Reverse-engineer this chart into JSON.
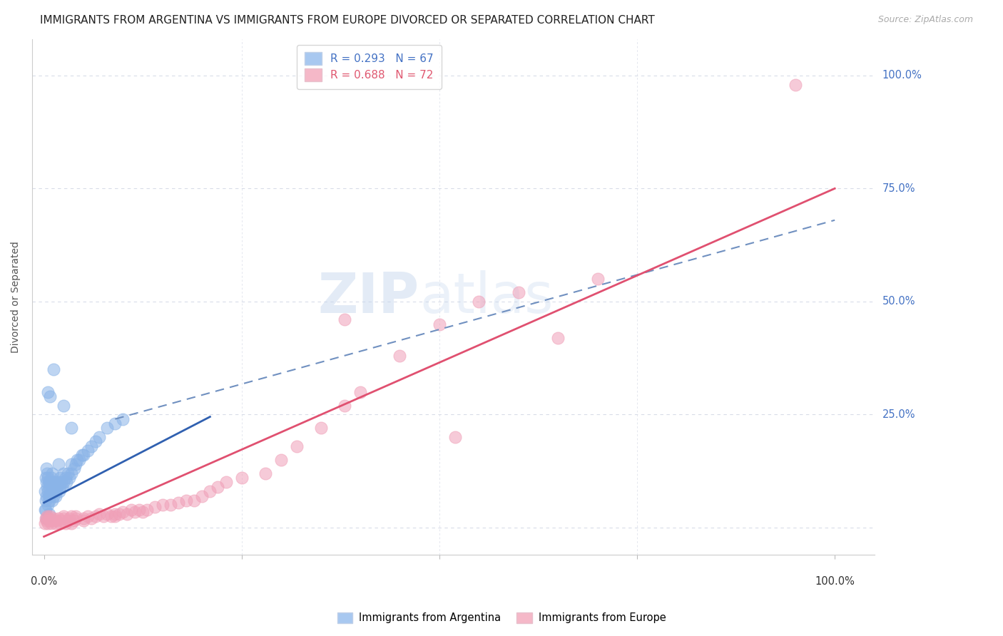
{
  "title": "IMMIGRANTS FROM ARGENTINA VS IMMIGRANTS FROM EUROPE DIVORCED OR SEPARATED CORRELATION CHART",
  "source": "Source: ZipAtlas.com",
  "ylabel": "Divorced or Separated",
  "series1": {
    "name": "Immigrants from Argentina",
    "scatter_color": "#8ab4e8",
    "line_color": "#3060b0",
    "R": 0.293,
    "N": 67,
    "line_x0": 0.0,
    "line_y0": 0.055,
    "line_x1": 0.21,
    "line_y1": 0.245
  },
  "series2": {
    "name": "Immigrants from Europe",
    "scatter_color": "#f0a0b8",
    "line_color": "#e05070",
    "R": 0.688,
    "N": 72,
    "line_x0": 0.0,
    "line_y0": -0.02,
    "line_x1": 1.0,
    "line_y1": 0.75
  },
  "dashed_line": {
    "color": "#7090c0",
    "x0": 0.09,
    "y0": 0.24,
    "x1": 1.0,
    "y1": 0.68
  },
  "scatter1_data": {
    "x": [
      0.001,
      0.001,
      0.002,
      0.002,
      0.003,
      0.003,
      0.003,
      0.004,
      0.004,
      0.005,
      0.005,
      0.005,
      0.006,
      0.006,
      0.007,
      0.007,
      0.008,
      0.008,
      0.009,
      0.009,
      0.01,
      0.01,
      0.01,
      0.012,
      0.012,
      0.013,
      0.014,
      0.015,
      0.015,
      0.016,
      0.017,
      0.018,
      0.019,
      0.02,
      0.02,
      0.022,
      0.023,
      0.025,
      0.025,
      0.027,
      0.028,
      0.03,
      0.032,
      0.035,
      0.035,
      0.038,
      0.04,
      0.042,
      0.045,
      0.048,
      0.05,
      0.055,
      0.06,
      0.065,
      0.07,
      0.08,
      0.09,
      0.1,
      0.005,
      0.008,
      0.012,
      0.025,
      0.002,
      0.003,
      0.007,
      0.035,
      0.018
    ],
    "y": [
      0.04,
      0.08,
      0.06,
      0.11,
      0.07,
      0.1,
      0.13,
      0.09,
      0.12,
      0.05,
      0.08,
      0.11,
      0.07,
      0.1,
      0.06,
      0.09,
      0.07,
      0.1,
      0.08,
      0.11,
      0.06,
      0.09,
      0.12,
      0.07,
      0.1,
      0.08,
      0.09,
      0.07,
      0.1,
      0.08,
      0.09,
      0.1,
      0.08,
      0.09,
      0.11,
      0.1,
      0.09,
      0.1,
      0.12,
      0.11,
      0.1,
      0.12,
      0.11,
      0.12,
      0.14,
      0.13,
      0.14,
      0.15,
      0.15,
      0.16,
      0.16,
      0.17,
      0.18,
      0.19,
      0.2,
      0.22,
      0.23,
      0.24,
      0.3,
      0.29,
      0.35,
      0.27,
      0.04,
      0.02,
      0.03,
      0.22,
      0.14
    ]
  },
  "scatter2_data": {
    "x": [
      0.001,
      0.002,
      0.003,
      0.004,
      0.005,
      0.006,
      0.007,
      0.008,
      0.009,
      0.01,
      0.012,
      0.013,
      0.015,
      0.016,
      0.018,
      0.02,
      0.022,
      0.025,
      0.025,
      0.027,
      0.03,
      0.032,
      0.035,
      0.035,
      0.038,
      0.04,
      0.04,
      0.05,
      0.05,
      0.055,
      0.06,
      0.065,
      0.07,
      0.075,
      0.08,
      0.085,
      0.09,
      0.09,
      0.095,
      0.1,
      0.105,
      0.11,
      0.115,
      0.12,
      0.125,
      0.13,
      0.14,
      0.15,
      0.16,
      0.17,
      0.18,
      0.19,
      0.2,
      0.21,
      0.22,
      0.23,
      0.25,
      0.28,
      0.3,
      0.32,
      0.35,
      0.38,
      0.4,
      0.45,
      0.5,
      0.55,
      0.6,
      0.65,
      0.7,
      0.38,
      0.95,
      0.52
    ],
    "y": [
      0.01,
      0.02,
      0.015,
      0.025,
      0.01,
      0.02,
      0.015,
      0.025,
      0.01,
      0.015,
      0.02,
      0.015,
      0.01,
      0.015,
      0.02,
      0.01,
      0.015,
      0.02,
      0.025,
      0.01,
      0.015,
      0.02,
      0.025,
      0.01,
      0.015,
      0.02,
      0.025,
      0.015,
      0.02,
      0.025,
      0.02,
      0.025,
      0.03,
      0.025,
      0.03,
      0.025,
      0.03,
      0.025,
      0.03,
      0.035,
      0.03,
      0.04,
      0.035,
      0.04,
      0.035,
      0.04,
      0.045,
      0.05,
      0.05,
      0.055,
      0.06,
      0.06,
      0.07,
      0.08,
      0.09,
      0.1,
      0.11,
      0.12,
      0.15,
      0.18,
      0.22,
      0.27,
      0.3,
      0.38,
      0.45,
      0.5,
      0.52,
      0.42,
      0.55,
      0.46,
      0.98,
      0.2
    ]
  },
  "xlim": [
    -0.015,
    1.05
  ],
  "ylim": [
    -0.06,
    1.08
  ],
  "yticks": [
    0.0,
    0.25,
    0.5,
    0.75,
    1.0
  ],
  "ytick_labels": [
    "",
    "25.0%",
    "50.0%",
    "75.0%",
    "100.0%"
  ],
  "grid_color": "#d8dce8",
  "background_color": "#ffffff",
  "fig_width": 14.06,
  "fig_height": 8.92,
  "title_fontsize": 11,
  "axis_label_fontsize": 10,
  "legend_fontsize": 11,
  "source_fontsize": 9
}
